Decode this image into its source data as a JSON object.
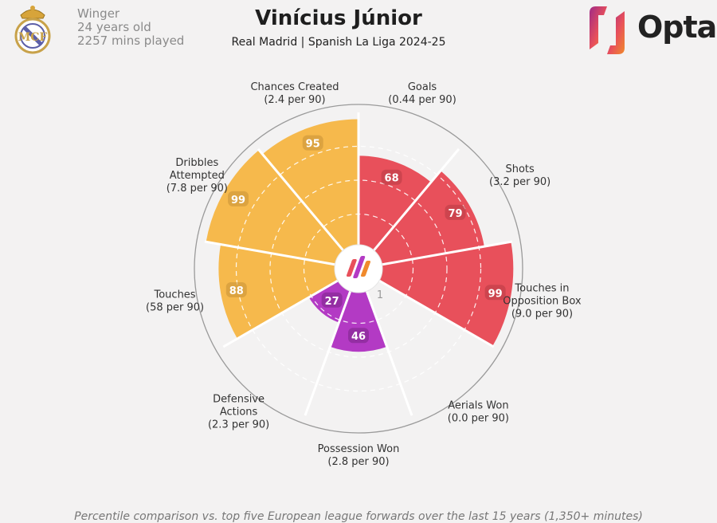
{
  "player": {
    "name": "Vinícius Júnior",
    "position": "Winger",
    "age": "24 years old",
    "minutes": "2257 mins played",
    "team_league": "Real Madrid | Spanish La Liga 2024-25"
  },
  "brand": {
    "name": "Opta"
  },
  "footnote": "Percentile comparison vs. top five European league forwards over the last 15 years (1,350+ minutes)",
  "chart_data": {
    "type": "polar-bar",
    "center_label": "1",
    "rlim": [
      0,
      100
    ],
    "categories": [
      {
        "label_lines": [
          "Goals",
          "(0.44 per 90)"
        ],
        "value": 68,
        "group": "attacking"
      },
      {
        "label_lines": [
          "Shots",
          "(3.2 per 90)"
        ],
        "value": 79,
        "group": "attacking"
      },
      {
        "label_lines": [
          "Touches in",
          "Opposition Box",
          "(9.0 per 90)"
        ],
        "value": 99,
        "group": "attacking"
      },
      {
        "label_lines": [
          "Aerials Won",
          "(0.0 per 90)"
        ],
        "value": 1,
        "group": "defending"
      },
      {
        "label_lines": [
          "Possession Won",
          "(2.8 per 90)"
        ],
        "value": 46,
        "group": "defending"
      },
      {
        "label_lines": [
          "Defensive",
          "Actions",
          "(2.3 per 90)"
        ],
        "value": 27,
        "group": "defending"
      },
      {
        "label_lines": [
          "Touches",
          "(58 per 90)"
        ],
        "value": 88,
        "group": "possession"
      },
      {
        "label_lines": [
          "Dribbles",
          "Attempted",
          "(7.8 per 90)"
        ],
        "value": 99,
        "group": "possession"
      },
      {
        "label_lines": [
          "Chances Created",
          "(2.4 per 90)"
        ],
        "value": 95,
        "group": "possession"
      }
    ],
    "colors": {
      "attacking": "#e8505b",
      "defending": "#b33ac4",
      "possession": "#f6b94c"
    }
  }
}
